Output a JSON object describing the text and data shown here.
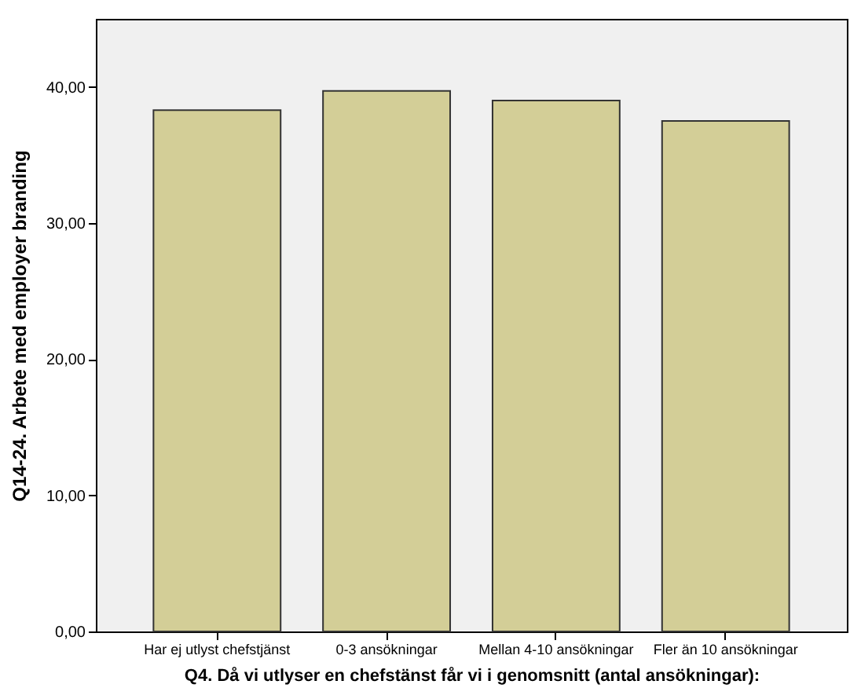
{
  "chart_data": {
    "type": "bar",
    "xlabel": "Q4. Då vi utlyser en chefstänst får vi i genomsnitt (antal ansökningar):",
    "ylabel": "Q14-24. Arbete med employer branding",
    "categories": [
      "Har ej utlyst chefstjänst",
      "0-3 ansökningar",
      "Mellan 4-10 ansökningar",
      "Fler än 10 ansökningar"
    ],
    "values": [
      38.3,
      39.7,
      39.0,
      37.5
    ],
    "color": "#d3ce97",
    "ylim": [
      0,
      45
    ],
    "yticks": [
      {
        "value": 0,
        "label": "0,00"
      },
      {
        "value": 10,
        "label": "10,00"
      },
      {
        "value": 20,
        "label": "20,00"
      },
      {
        "value": 30,
        "label": "30,00"
      },
      {
        "value": 40,
        "label": "40,00"
      }
    ],
    "grid": false
  }
}
